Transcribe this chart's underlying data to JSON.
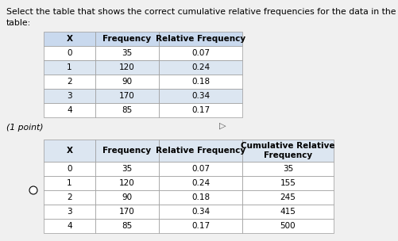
{
  "title_line1": "Select the table that shows the correct cumulative relative frequencies for the data in the following",
  "title_line2": "table:",
  "top_table": {
    "headers": [
      "X",
      "Frequency",
      "Relative Frequency"
    ],
    "rows": [
      [
        "0",
        "35",
        "0.07"
      ],
      [
        "1",
        "120",
        "0.24"
      ],
      [
        "2",
        "90",
        "0.18"
      ],
      [
        "3",
        "170",
        "0.34"
      ],
      [
        "4",
        "85",
        "0.17"
      ]
    ],
    "header_bg": "#c9d9ee",
    "row_bg": "#ffffff",
    "row_bg_alt": "#dce6f1",
    "border_color": "#999999"
  },
  "point_text": "(1 point)",
  "bottom_table": {
    "headers": [
      "X",
      "Frequency",
      "Relative Frequency",
      "Cumulative Relative\nFrequency"
    ],
    "rows": [
      [
        "0",
        "35",
        "0.07",
        "35"
      ],
      [
        "1",
        "120",
        "0.24",
        "155"
      ],
      [
        "2",
        "90",
        "0.18",
        "245"
      ],
      [
        "3",
        "170",
        "0.34",
        "415"
      ],
      [
        "4",
        "85",
        "0.17",
        "500"
      ]
    ],
    "header_bg": "#dce6f1",
    "row_bg": "#ffffff",
    "border_color": "#999999"
  },
  "bg_color": "#f0f0f0",
  "title_fontsize": 7.8,
  "table_fontsize": 7.5,
  "point_fontsize": 7.8
}
